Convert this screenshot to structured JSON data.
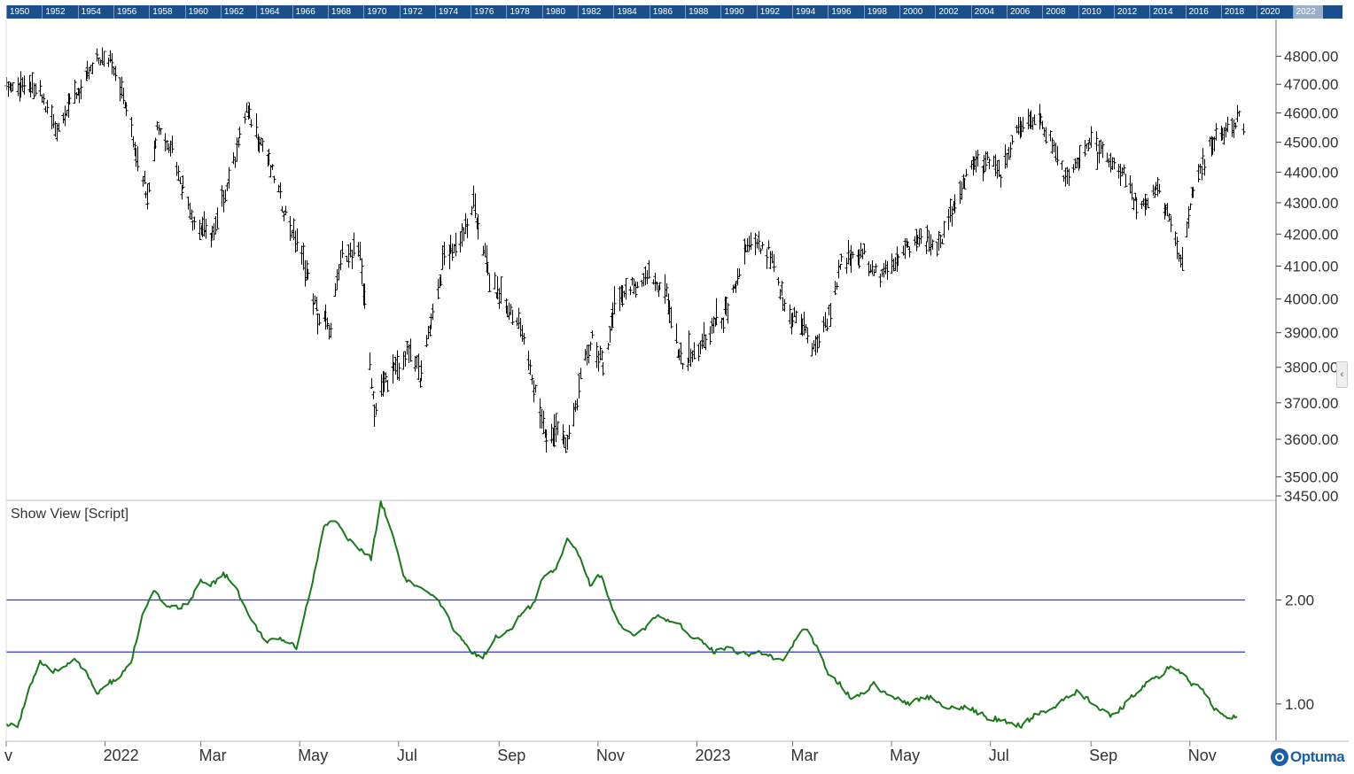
{
  "timebar": {
    "years": [
      "1950",
      "1952",
      "1954",
      "1956",
      "1958",
      "1960",
      "1962",
      "1964",
      "1966",
      "1968",
      "1970",
      "1972",
      "1974",
      "1976",
      "1978",
      "1980",
      "1982",
      "1984",
      "1986",
      "1988",
      "1990",
      "1992",
      "1994",
      "1996",
      "1998",
      "2000",
      "2002",
      "2004",
      "2006",
      "2008",
      "2010",
      "2012",
      "2014",
      "2016",
      "2018",
      "2020",
      "2022"
    ],
    "selected": "2022"
  },
  "indicator": {
    "title": "Show View [Script]"
  },
  "logo": "Optuma",
  "colors": {
    "price_bars": "#000000",
    "indicator_line": "#1a7a1a",
    "reference_lines": "#3333dd",
    "timebar": "#1a4f8c"
  },
  "chart_data": [
    {
      "type": "ohlc",
      "name": "price",
      "ylim": [
        3450,
        4850
      ],
      "y_tick_labels": [
        "4800.00",
        "4700.00",
        "4600.00",
        "4500.00",
        "4400.00",
        "4300.00",
        "4200.00",
        "4100.00",
        "4000.00",
        "3900.00",
        "3800.00",
        "3700.00",
        "3600.00",
        "3500.00",
        "3450.00"
      ],
      "y_ticks": [
        4800,
        4700,
        4600,
        4500,
        4400,
        4300,
        4200,
        4100,
        4000,
        3900,
        3800,
        3700,
        3600,
        3500,
        3450
      ],
      "x_labels": [
        "v",
        "2022",
        "Mar",
        "May",
        "Jul",
        "Sep",
        "Nov",
        "2023",
        "Mar",
        "May",
        "Jul",
        "Sep",
        "Nov"
      ],
      "x_label_dates": [
        "2021-11-01",
        "2022-01-01",
        "2022-03-01",
        "2022-05-01",
        "2022-07-01",
        "2022-09-01",
        "2022-11-01",
        "2023-01-01",
        "2023-03-01",
        "2023-05-01",
        "2023-07-01",
        "2023-09-01",
        "2023-11-01"
      ],
      "close_path": [
        [
          "2021-11-01",
          4700
        ],
        [
          "2021-11-20",
          4690
        ],
        [
          "2021-12-01",
          4550
        ],
        [
          "2021-12-15",
          4680
        ],
        [
          "2021-12-28",
          4790
        ],
        [
          "2022-01-04",
          4800
        ],
        [
          "2022-01-10",
          4700
        ],
        [
          "2022-01-20",
          4480
        ],
        [
          "2022-01-27",
          4330
        ],
        [
          "2022-02-02",
          4560
        ],
        [
          "2022-02-10",
          4500
        ],
        [
          "2022-02-24",
          4250
        ],
        [
          "2022-03-08",
          4200
        ],
        [
          "2022-03-20",
          4420
        ],
        [
          "2022-03-29",
          4620
        ],
        [
          "2022-04-08",
          4500
        ],
        [
          "2022-04-22",
          4270
        ],
        [
          "2022-05-02",
          4140
        ],
        [
          "2022-05-12",
          3950
        ],
        [
          "2022-05-20",
          3920
        ],
        [
          "2022-05-27",
          4150
        ],
        [
          "2022-06-07",
          4140
        ],
        [
          "2022-06-16",
          3680
        ],
        [
          "2022-06-22",
          3760
        ],
        [
          "2022-06-30",
          3800
        ],
        [
          "2022-07-08",
          3850
        ],
        [
          "2022-07-14",
          3780
        ],
        [
          "2022-07-29",
          4130
        ],
        [
          "2022-08-10",
          4200
        ],
        [
          "2022-08-16",
          4300
        ],
        [
          "2022-08-26",
          4060
        ],
        [
          "2022-09-07",
          3980
        ],
        [
          "2022-09-13",
          3940
        ],
        [
          "2022-09-30",
          3600
        ],
        [
          "2022-10-07",
          3640
        ],
        [
          "2022-10-12",
          3580
        ],
        [
          "2022-10-21",
          3760
        ],
        [
          "2022-10-28",
          3900
        ],
        [
          "2022-11-04",
          3800
        ],
        [
          "2022-11-11",
          3990
        ],
        [
          "2022-11-30",
          4080
        ],
        [
          "2022-12-13",
          4020
        ],
        [
          "2022-12-22",
          3820
        ],
        [
          "2022-12-30",
          3840
        ],
        [
          "2023-01-10",
          3920
        ],
        [
          "2023-01-20",
          3970
        ],
        [
          "2023-02-02",
          4180
        ],
        [
          "2023-02-15",
          4140
        ],
        [
          "2023-02-24",
          3980
        ],
        [
          "2023-03-09",
          3920
        ],
        [
          "2023-03-13",
          3850
        ],
        [
          "2023-03-22",
          3950
        ],
        [
          "2023-03-31",
          4110
        ],
        [
          "2023-04-14",
          4140
        ],
        [
          "2023-04-25",
          4070
        ],
        [
          "2023-05-05",
          4140
        ],
        [
          "2023-05-19",
          4190
        ],
        [
          "2023-05-31",
          4180
        ],
        [
          "2023-06-09",
          4300
        ],
        [
          "2023-06-16",
          4410
        ],
        [
          "2023-06-30",
          4450
        ],
        [
          "2023-07-07",
          4400
        ],
        [
          "2023-07-18",
          4550
        ],
        [
          "2023-07-31",
          4590
        ],
        [
          "2023-08-10",
          4470
        ],
        [
          "2023-08-18",
          4370
        ],
        [
          "2023-08-31",
          4510
        ],
        [
          "2023-09-08",
          4460
        ],
        [
          "2023-09-20",
          4400
        ],
        [
          "2023-09-29",
          4290
        ],
        [
          "2023-10-06",
          4310
        ],
        [
          "2023-10-12",
          4350
        ],
        [
          "2023-10-20",
          4230
        ],
        [
          "2023-10-27",
          4120
        ],
        [
          "2023-11-03",
          4360
        ],
        [
          "2023-11-14",
          4500
        ],
        [
          "2023-11-24",
          4560
        ],
        [
          "2023-12-01",
          4590
        ],
        [
          "2023-12-04",
          4570
        ]
      ]
    },
    {
      "type": "line",
      "name": "indicator",
      "ylim": [
        0.65,
        2.95
      ],
      "y_tick_labels": [
        "2.00",
        "1.00"
      ],
      "y_ticks": [
        2.0,
        1.0
      ],
      "reference_lines": [
        2.0,
        1.5
      ],
      "series": [
        {
          "values": [
            [
              "2021-11-01",
              0.8
            ],
            [
              "2021-11-08",
              0.78
            ],
            [
              "2021-11-15",
              1.15
            ],
            [
              "2021-11-22",
              1.4
            ],
            [
              "2021-11-29",
              1.3
            ],
            [
              "2021-12-06",
              1.35
            ],
            [
              "2021-12-13",
              1.45
            ],
            [
              "2021-12-20",
              1.3
            ],
            [
              "2021-12-27",
              1.1
            ],
            [
              "2022-01-03",
              1.2
            ],
            [
              "2022-01-10",
              1.25
            ],
            [
              "2022-01-17",
              1.4
            ],
            [
              "2022-01-24",
              1.85
            ],
            [
              "2022-01-31",
              2.08
            ],
            [
              "2022-02-07",
              1.95
            ],
            [
              "2022-02-14",
              1.93
            ],
            [
              "2022-02-21",
              1.95
            ],
            [
              "2022-03-01",
              2.18
            ],
            [
              "2022-03-08",
              2.15
            ],
            [
              "2022-03-15",
              2.25
            ],
            [
              "2022-03-22",
              2.15
            ],
            [
              "2022-04-01",
              1.8
            ],
            [
              "2022-04-11",
              1.6
            ],
            [
              "2022-04-21",
              1.62
            ],
            [
              "2022-04-29",
              1.55
            ],
            [
              "2022-05-09",
              2.18
            ],
            [
              "2022-05-16",
              2.7
            ],
            [
              "2022-05-23",
              2.78
            ],
            [
              "2022-05-30",
              2.6
            ],
            [
              "2022-06-06",
              2.5
            ],
            [
              "2022-06-14",
              2.4
            ],
            [
              "2022-06-20",
              2.95
            ],
            [
              "2022-06-27",
              2.65
            ],
            [
              "2022-07-05",
              2.2
            ],
            [
              "2022-07-15",
              2.1
            ],
            [
              "2022-07-25",
              2.0
            ],
            [
              "2022-08-05",
              1.7
            ],
            [
              "2022-08-15",
              1.5
            ],
            [
              "2022-08-22",
              1.45
            ],
            [
              "2022-08-30",
              1.65
            ],
            [
              "2022-09-08",
              1.7
            ],
            [
              "2022-09-15",
              1.88
            ],
            [
              "2022-09-22",
              1.95
            ],
            [
              "2022-09-29",
              2.25
            ],
            [
              "2022-10-06",
              2.3
            ],
            [
              "2022-10-13",
              2.6
            ],
            [
              "2022-10-20",
              2.45
            ],
            [
              "2022-10-27",
              2.15
            ],
            [
              "2022-11-03",
              2.25
            ],
            [
              "2022-11-10",
              1.9
            ],
            [
              "2022-11-17",
              1.7
            ],
            [
              "2022-11-24",
              1.65
            ],
            [
              "2022-12-01",
              1.75
            ],
            [
              "2022-12-08",
              1.85
            ],
            [
              "2022-12-15",
              1.78
            ],
            [
              "2022-12-22",
              1.75
            ],
            [
              "2022-12-29",
              1.65
            ],
            [
              "2023-01-05",
              1.6
            ],
            [
              "2023-01-12",
              1.5
            ],
            [
              "2023-01-19",
              1.55
            ],
            [
              "2023-01-26",
              1.5
            ],
            [
              "2023-02-02",
              1.48
            ],
            [
              "2023-02-09",
              1.5
            ],
            [
              "2023-02-16",
              1.45
            ],
            [
              "2023-02-23",
              1.4
            ],
            [
              "2023-03-02",
              1.6
            ],
            [
              "2023-03-09",
              1.73
            ],
            [
              "2023-03-16",
              1.55
            ],
            [
              "2023-03-23",
              1.3
            ],
            [
              "2023-03-30",
              1.2
            ],
            [
              "2023-04-06",
              1.05
            ],
            [
              "2023-04-13",
              1.1
            ],
            [
              "2023-04-20",
              1.2
            ],
            [
              "2023-04-27",
              1.1
            ],
            [
              "2023-05-04",
              1.05
            ],
            [
              "2023-05-11",
              1.0
            ],
            [
              "2023-05-18",
              1.05
            ],
            [
              "2023-05-25",
              1.07
            ],
            [
              "2023-06-01",
              1.0
            ],
            [
              "2023-06-08",
              0.95
            ],
            [
              "2023-06-15",
              0.97
            ],
            [
              "2023-06-22",
              0.93
            ],
            [
              "2023-06-29",
              0.87
            ],
            [
              "2023-07-06",
              0.85
            ],
            [
              "2023-07-13",
              0.82
            ],
            [
              "2023-07-20",
              0.78
            ],
            [
              "2023-07-27",
              0.88
            ],
            [
              "2023-08-03",
              0.93
            ],
            [
              "2023-08-10",
              0.98
            ],
            [
              "2023-08-17",
              1.05
            ],
            [
              "2023-08-24",
              1.12
            ],
            [
              "2023-08-31",
              1.03
            ],
            [
              "2023-09-07",
              0.95
            ],
            [
              "2023-09-14",
              0.88
            ],
            [
              "2023-09-21",
              0.98
            ],
            [
              "2023-09-28",
              1.1
            ],
            [
              "2023-10-05",
              1.2
            ],
            [
              "2023-10-12",
              1.25
            ],
            [
              "2023-10-19",
              1.35
            ],
            [
              "2023-10-26",
              1.3
            ],
            [
              "2023-11-02",
              1.2
            ],
            [
              "2023-11-09",
              1.15
            ],
            [
              "2023-11-16",
              0.95
            ],
            [
              "2023-11-23",
              0.87
            ],
            [
              "2023-11-30",
              0.88
            ]
          ]
        }
      ]
    }
  ]
}
